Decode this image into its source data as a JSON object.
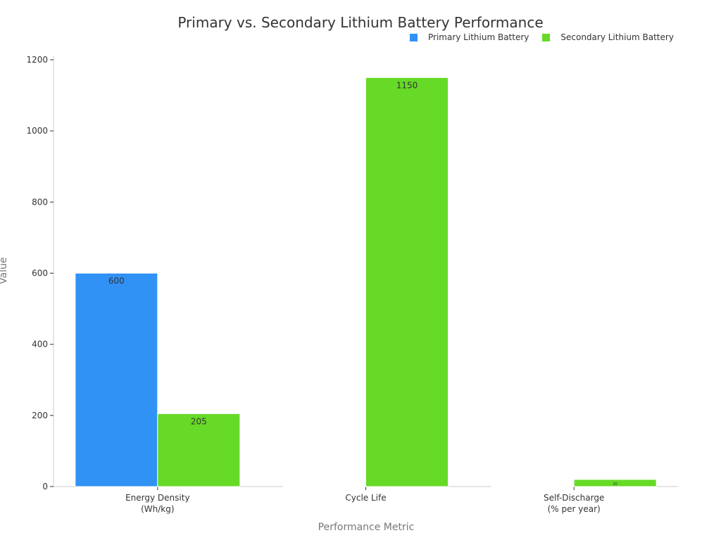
{
  "chart_data": {
    "type": "bar",
    "title": "Primary vs. Secondary Lithium Battery Performance",
    "xlabel": "Performance Metric",
    "ylabel": "Value",
    "ylim": [
      0,
      1200
    ],
    "yticks": [
      0,
      200,
      400,
      600,
      800,
      1000,
      1200
    ],
    "categories": [
      "Energy Density (Wh/kg)",
      "Cycle Life",
      "Self-Discharge (% per year)"
    ],
    "category_lines": [
      [
        "Energy Density",
        "(Wh/kg)"
      ],
      [
        "Cycle Life"
      ],
      [
        "Self-Discharge",
        "(% per year)"
      ]
    ],
    "legend_position": "top-right",
    "grid": false,
    "series": [
      {
        "name": "Primary Lithium Battery",
        "color": "#3192f6",
        "values": [
          600,
          1,
          2
        ],
        "labels": [
          "600",
          "",
          ""
        ]
      },
      {
        "name": "Secondary Lithium Battery",
        "color": "#66da26",
        "values": [
          205,
          1150,
          20
        ],
        "labels": [
          "205",
          "1150",
          "20"
        ]
      }
    ]
  }
}
